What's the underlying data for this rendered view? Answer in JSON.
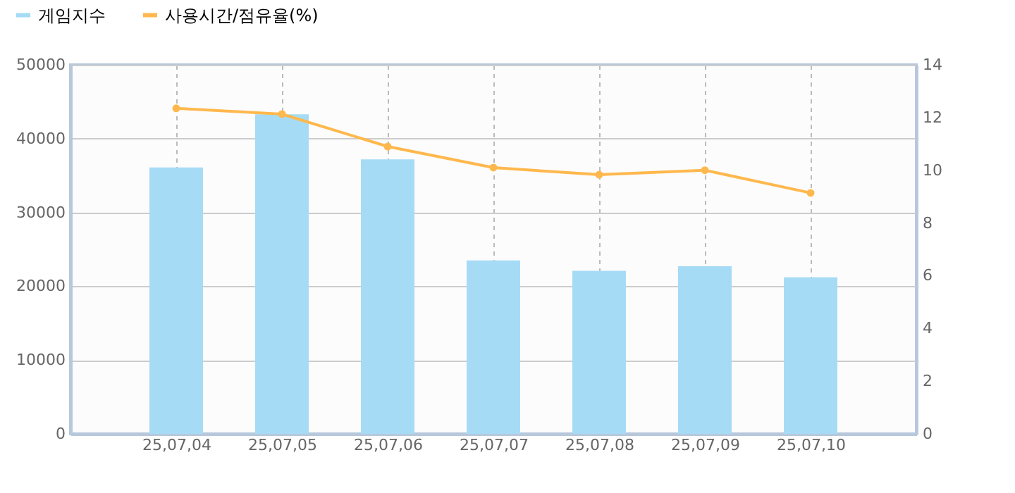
{
  "chart_data": {
    "type": "bar",
    "categories": [
      "25,07,04",
      "25,07,05",
      "25,07,06",
      "25,07,07",
      "25,07,08",
      "25,07,09",
      "25,07,10"
    ],
    "series": [
      {
        "name": "게임지수",
        "color": "#a6dbf5",
        "values": [
          36100,
          43300,
          37200,
          23500,
          22100,
          22700,
          21200
        ]
      },
      {
        "name": "사용시간/점유율(%)",
        "type": "line",
        "axis": "y2",
        "color": "#ffb84d",
        "values": [
          12.35,
          12.13,
          10.9,
          10.1,
          9.83,
          10.0,
          9.14
        ]
      }
    ],
    "ylim": [
      0,
      50000
    ],
    "yticks": [
      0,
      10000,
      20000,
      30000,
      40000,
      50000
    ],
    "y2lim": [
      0,
      14
    ],
    "y2ticks": [
      0,
      2,
      4,
      6,
      8,
      10,
      12,
      14
    ],
    "grid": true,
    "legend": "top left",
    "marker": "circle",
    "line_style": "solid"
  }
}
